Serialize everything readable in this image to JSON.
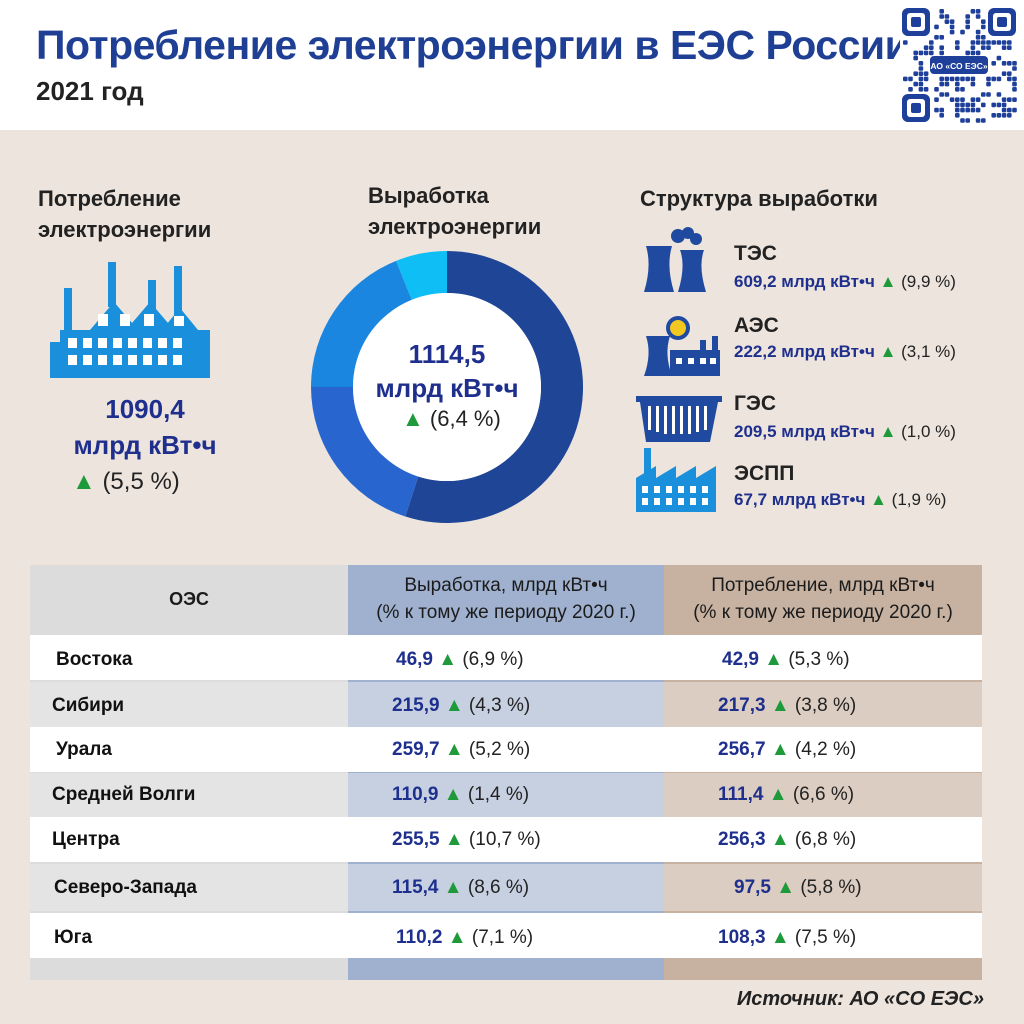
{
  "header": {
    "title": "Потребление электроэнергии в ЕЭС России",
    "subtitle": "2021 год",
    "qr_label": "АО «СО ЕЭС»"
  },
  "consumption": {
    "label_line1": "Потребление",
    "label_line2": "электроэнергии",
    "value": "1090,4",
    "unit": "млрд кВт•ч",
    "change": "(5,5 %)"
  },
  "generation": {
    "label_line1": "Выработка",
    "label_line2": "электроэнергии",
    "value": "1114,5",
    "unit": "млрд кВт•ч",
    "change": "(6,4 %)"
  },
  "structure": {
    "title": "Структура выработки",
    "items": [
      {
        "name": "ТЭС",
        "value": "609,2 млрд кВт•ч",
        "change": "(9,9 %)"
      },
      {
        "name": "АЭС",
        "value": "222,2 млрд кВт•ч",
        "change": "(3,1 %)"
      },
      {
        "name": "ГЭС",
        "value": "209,5 млрд кВт•ч",
        "change": "(1,0 %)"
      },
      {
        "name": "ЭСПП",
        "value": "67,7 млрд кВт•ч",
        "change": "(1,9 %)"
      }
    ]
  },
  "chart_data": {
    "type": "pie",
    "categories": [
      "ТЭС",
      "АЭС",
      "ГЭС",
      "ЭСПП"
    ],
    "values": [
      609.2,
      222.2,
      209.5,
      67.7
    ],
    "colors": [
      "#1f4696",
      "#2865cf",
      "#1a86e0",
      "#0fbef4"
    ]
  },
  "table": {
    "headers": {
      "oes": "ОЭС",
      "gen_line1": "Выработка, млрд кВт•ч",
      "gen_line2": "(% к тому же периоду 2020 г.)",
      "cons_line1": "Потребление, млрд кВт•ч",
      "cons_line2": "(% к тому же периоду 2020 г.)"
    },
    "rows": [
      {
        "name": "Востока",
        "gen": "46,9",
        "gen_pct": "(6,9 %)",
        "cons": "42,9",
        "cons_pct": "(5,3 %)"
      },
      {
        "name": "Сибири",
        "gen": "215,9",
        "gen_pct": "(4,3 %)",
        "cons": "217,3",
        "cons_pct": "(3,8 %)"
      },
      {
        "name": "Урала",
        "gen": "259,7",
        "gen_pct": "(5,2 %)",
        "cons": "256,7",
        "cons_pct": "(4,2 %)"
      },
      {
        "name": "Средней Волги",
        "gen": "110,9",
        "gen_pct": "(1,4 %)",
        "cons": "111,4",
        "cons_pct": "(6,6 %)"
      },
      {
        "name": "Центра",
        "gen": "255,5",
        "gen_pct": "(10,7 %)",
        "cons": "256,3",
        "cons_pct": "(6,8 %)"
      },
      {
        "name": "Северо-Запада",
        "gen": "115,4",
        "gen_pct": "(8,6 %)",
        "cons": "97,5",
        "cons_pct": "(5,8 %)"
      },
      {
        "name": "Юга",
        "gen": "110,2",
        "gen_pct": "(7,1 %)",
        "cons": "108,3",
        "cons_pct": "(7,5 %)"
      }
    ]
  },
  "source": "Источник: АО «СО ЕЭС»",
  "colors": {
    "title": "#1f3f95",
    "value": "#1e2f8d",
    "up_arrow": "#1f9a3b",
    "icon": "#1a8fdc"
  }
}
